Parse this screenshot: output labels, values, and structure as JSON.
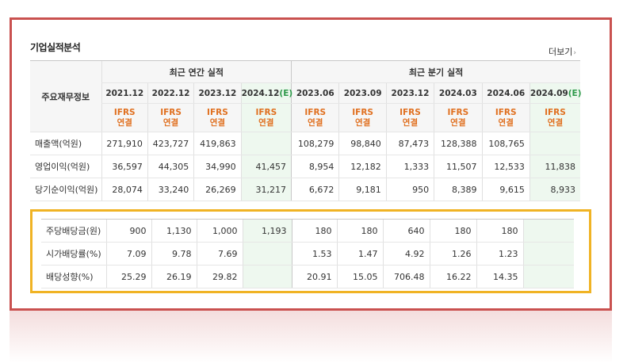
{
  "panel": {
    "title": "기업실적분석",
    "more_label": "더보기"
  },
  "table": {
    "row_header_label": "주요재무정보",
    "annual_group_label": "최근 연간 실적",
    "quarter_group_label": "최근 분기 실적",
    "annual_periods": [
      "2021.12",
      "2022.12",
      "2023.12",
      "2024.12"
    ],
    "annual_estimate_suffix": "(E)",
    "quarter_periods": [
      "2023.06",
      "2023.09",
      "2023.12",
      "2024.03",
      "2024.06",
      "2024.09"
    ],
    "quarter_estimate_suffix": "(E)",
    "ifrs_line1": "IFRS",
    "ifrs_line2": "연결",
    "rows": [
      {
        "label": "매출액(억원)",
        "annual": [
          "271,910",
          "423,727",
          "419,863",
          ""
        ],
        "quarter": [
          "108,279",
          "98,840",
          "87,473",
          "128,388",
          "108,765",
          ""
        ]
      },
      {
        "label": "영업이익(억원)",
        "annual": [
          "36,597",
          "44,305",
          "34,990",
          "41,457"
        ],
        "quarter": [
          "8,954",
          "12,182",
          "1,333",
          "11,507",
          "12,533",
          "11,838"
        ]
      },
      {
        "label": "당기순이익(억원)",
        "annual": [
          "28,074",
          "33,240",
          "26,269",
          "31,217"
        ],
        "quarter": [
          "6,672",
          "9,181",
          "950",
          "8,389",
          "9,615",
          "8,933"
        ]
      }
    ]
  },
  "dividends": {
    "rows": [
      {
        "label": "주당배당금(원)",
        "annual": [
          "900",
          "1,130",
          "1,000",
          "1,193"
        ],
        "quarter": [
          "180",
          "180",
          "640",
          "180",
          "180",
          ""
        ]
      },
      {
        "label": "시가배당률(%)",
        "annual": [
          "7.09",
          "9.78",
          "7.69",
          ""
        ],
        "quarter": [
          "1.53",
          "1.47",
          "4.92",
          "1.26",
          "1.23",
          ""
        ]
      },
      {
        "label": "배당성향(%)",
        "annual": [
          "25.29",
          "26.19",
          "29.82",
          ""
        ],
        "quarter": [
          "20.91",
          "15.05",
          "706.48",
          "16.22",
          "14.35",
          ""
        ]
      }
    ]
  },
  "colors": {
    "frame_red": "#c9514f",
    "frame_yellow": "#f0b324",
    "ifrs_orange": "#e07020",
    "estimate_green": "#2f9a4b",
    "estimate_column_bg": "#eef8ef"
  }
}
